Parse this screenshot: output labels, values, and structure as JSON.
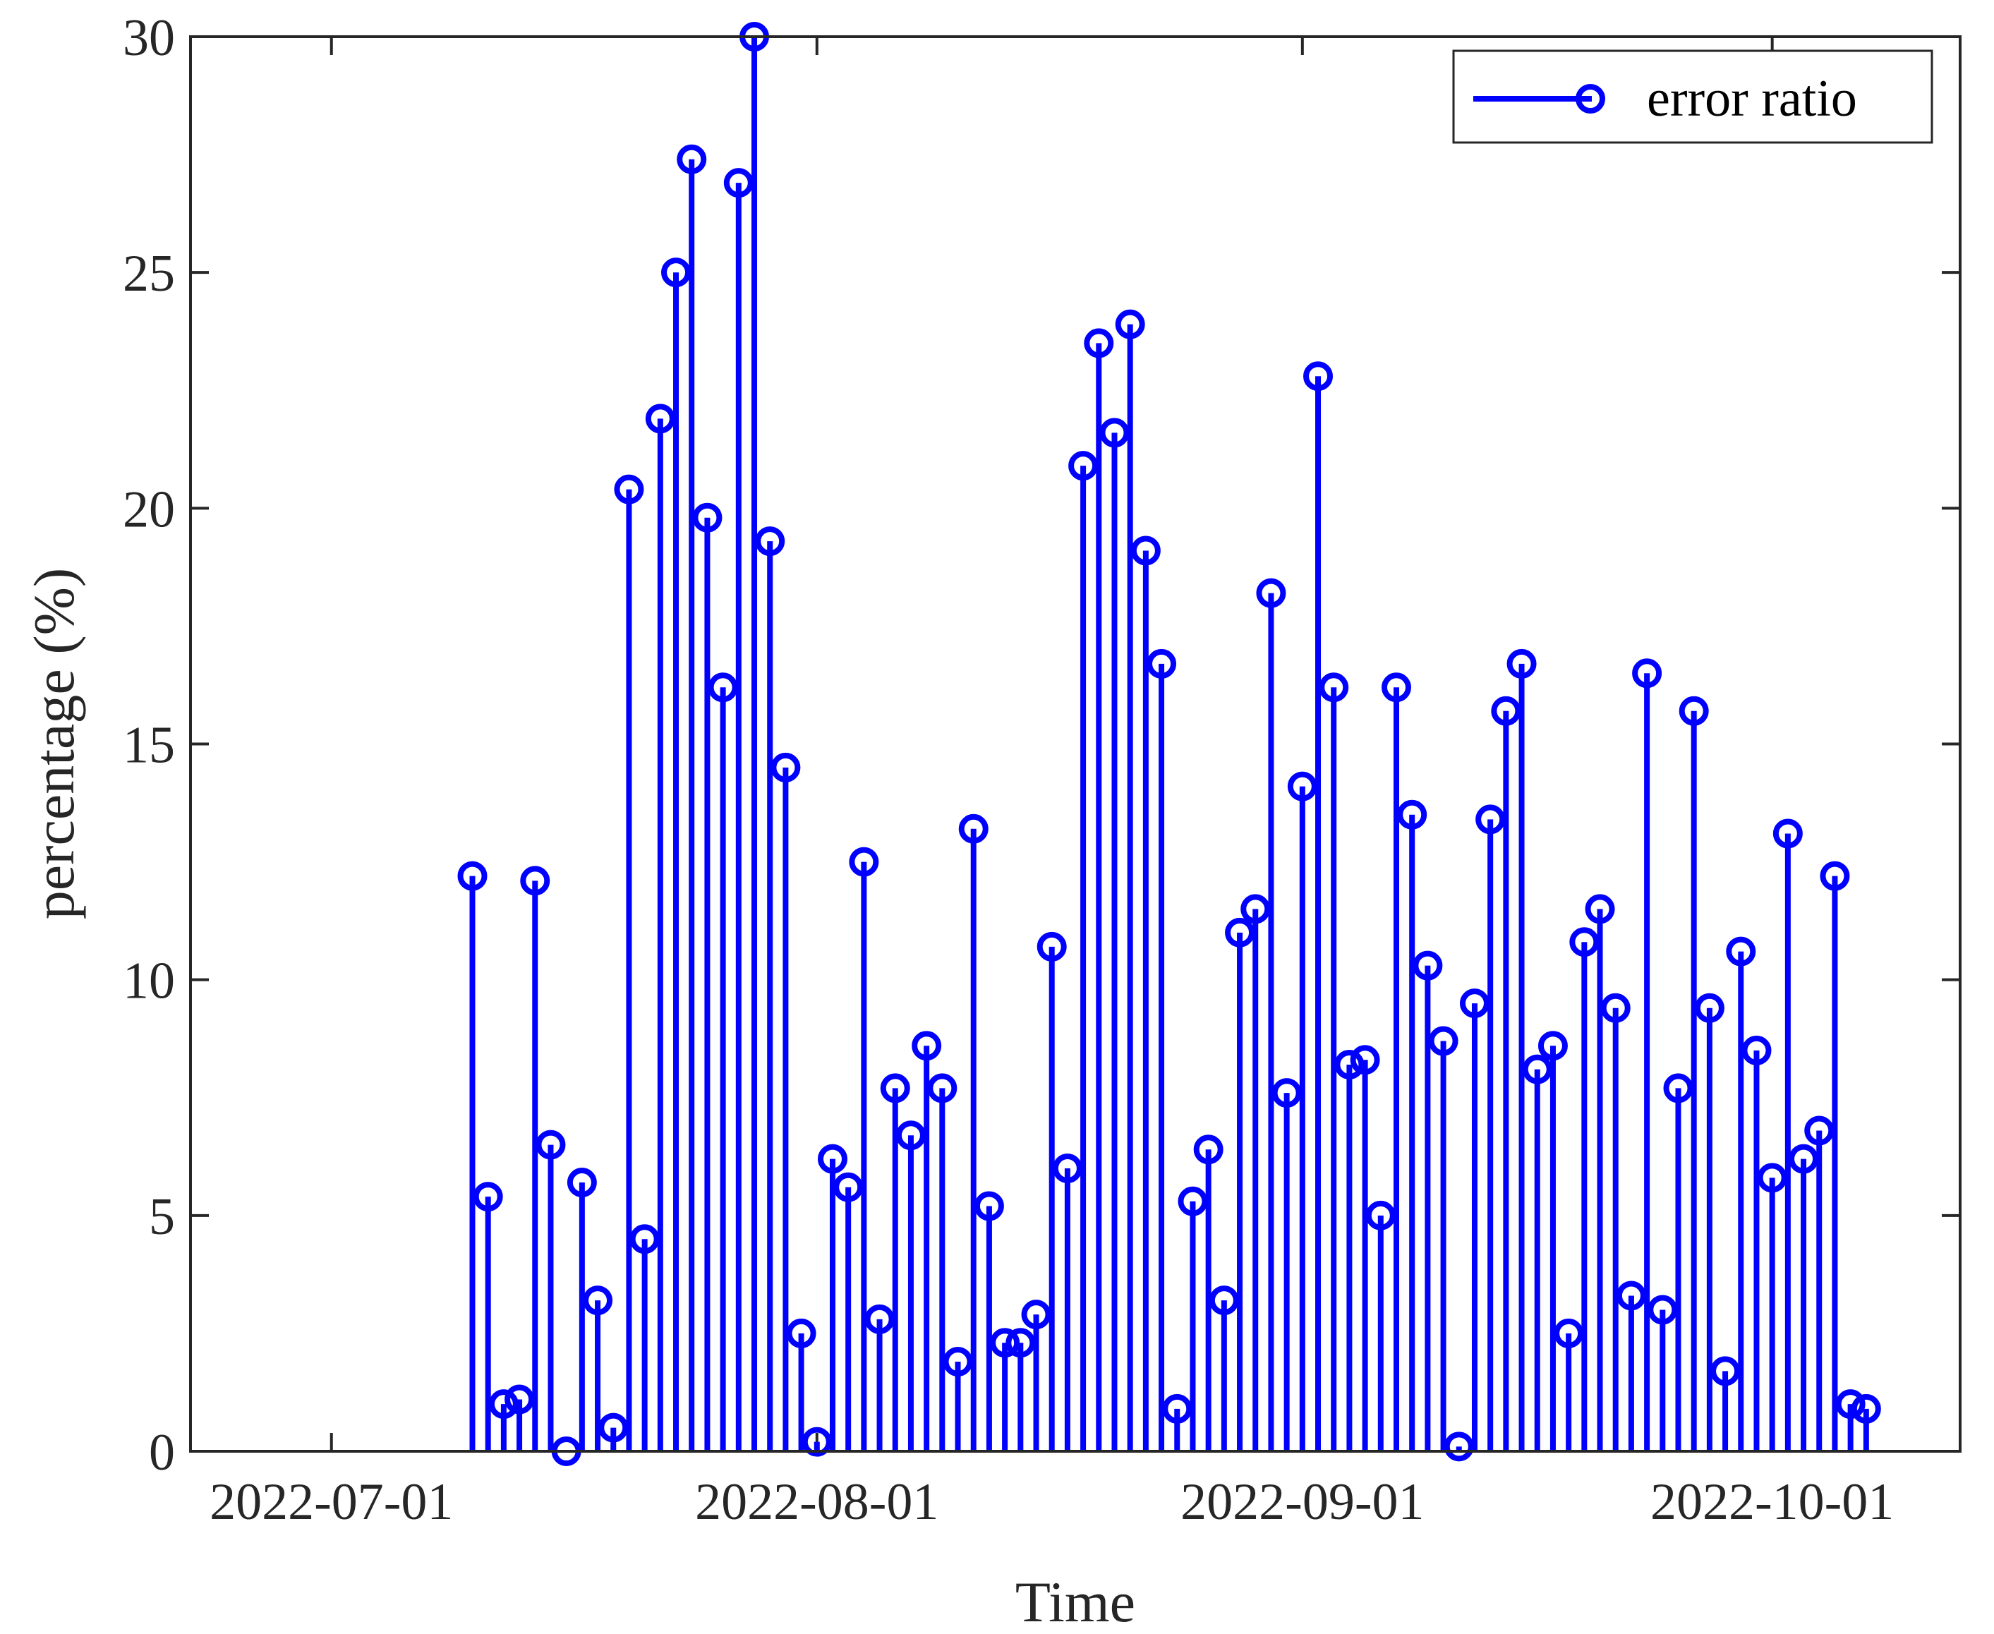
{
  "chart_data": {
    "type": "stem",
    "title": "",
    "xlabel": "Time",
    "ylabel": "percentage (%)",
    "ylim": [
      0,
      30
    ],
    "yticks": [
      "0",
      "5",
      "10",
      "15",
      "20",
      "25",
      "30"
    ],
    "xlim": [
      "2022-06-22",
      "2022-10-13"
    ],
    "xticks": [
      "2022-07-01",
      "2022-08-01",
      "2022-09-01",
      "2022-10-01"
    ],
    "legend": {
      "position": "top-right",
      "entries": [
        "error ratio"
      ]
    },
    "start_date": "2022-07-10",
    "series": [
      {
        "name": "error ratio",
        "color": "#0000ff",
        "marker": "open-circle",
        "values": [
          12.2,
          5.4,
          1.0,
          1.1,
          12.1,
          6.5,
          0.0,
          5.7,
          3.2,
          0.5,
          20.4,
          4.5,
          21.9,
          25.0,
          27.4,
          19.8,
          16.2,
          26.9,
          30.0,
          19.3,
          14.5,
          2.5,
          0.2,
          6.2,
          5.6,
          12.5,
          2.8,
          7.7,
          6.7,
          8.6,
          7.7,
          1.9,
          13.2,
          5.2,
          2.3,
          2.3,
          2.9,
          10.7,
          6.0,
          20.9,
          23.5,
          21.6,
          23.9,
          19.1,
          16.7,
          0.9,
          5.3,
          6.4,
          3.2,
          11.0,
          11.5,
          18.2,
          7.6,
          14.1,
          22.8,
          16.2,
          8.2,
          8.3,
          5.0,
          16.2,
          13.5,
          10.3,
          8.7,
          0.1,
          9.5,
          13.4,
          15.7,
          16.7,
          8.1,
          8.6,
          2.5,
          10.8,
          11.5,
          9.4,
          3.3,
          16.5,
          3.0,
          7.7,
          15.7,
          9.4,
          1.7,
          10.6,
          8.5,
          5.8,
          13.1,
          6.2,
          6.8,
          12.2,
          1.0,
          0.9
        ]
      }
    ]
  }
}
